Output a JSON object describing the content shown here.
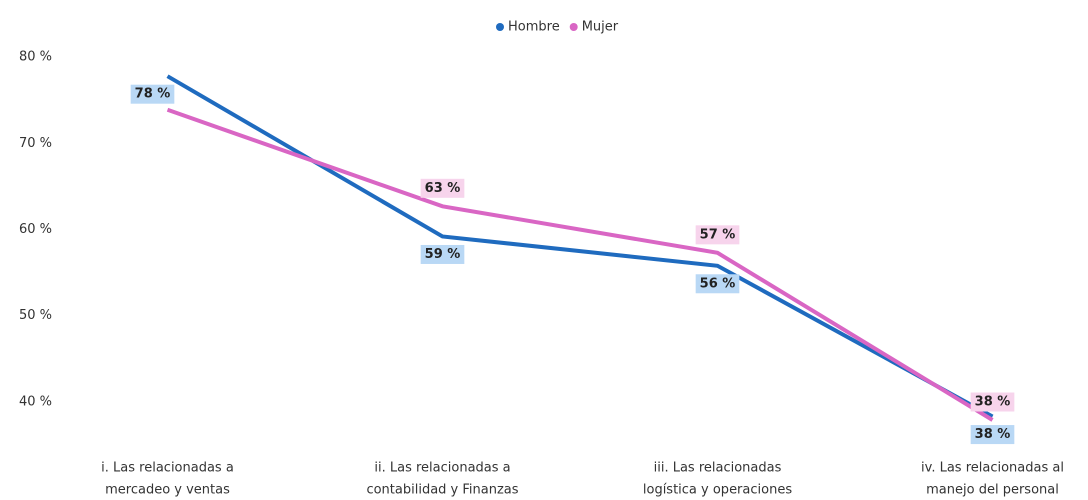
{
  "chart_data": {
    "type": "line",
    "categories": [
      [
        "i. Las relacionadas a",
        "mercadeo y ventas"
      ],
      [
        "ii. Las relacionadas a",
        "contabilidad y Finanzas"
      ],
      [
        "iii. Las relacionadas",
        "logística y operaciones"
      ],
      [
        "iv. Las relacionadas al",
        "manejo del personal"
      ]
    ],
    "series": [
      {
        "name": "Hombre",
        "color": "#1f6bbf",
        "label_color": "#b9d8f5",
        "values": [
          77.8,
          59.2,
          55.8,
          38.3
        ],
        "value_labels": [
          "78 %",
          "59 %",
          "56 %",
          "38 %"
        ]
      },
      {
        "name": "Mujer",
        "color": "#d966c4",
        "label_color": "#f7d4ec",
        "values": [
          73.9,
          62.7,
          57.3,
          37.9
        ],
        "value_labels": [
          null,
          "63 %",
          "57 %",
          "38 %"
        ]
      }
    ],
    "ylim": [
      35,
      82
    ],
    "yticks": [
      {
        "value": 40,
        "label": "40 %"
      },
      {
        "value": 50,
        "label": "50 %"
      },
      {
        "value": 60,
        "label": "60 %"
      },
      {
        "value": 70,
        "label": "70 %"
      },
      {
        "value": 80,
        "label": "80 %"
      }
    ],
    "grid": false,
    "legend": "top"
  }
}
